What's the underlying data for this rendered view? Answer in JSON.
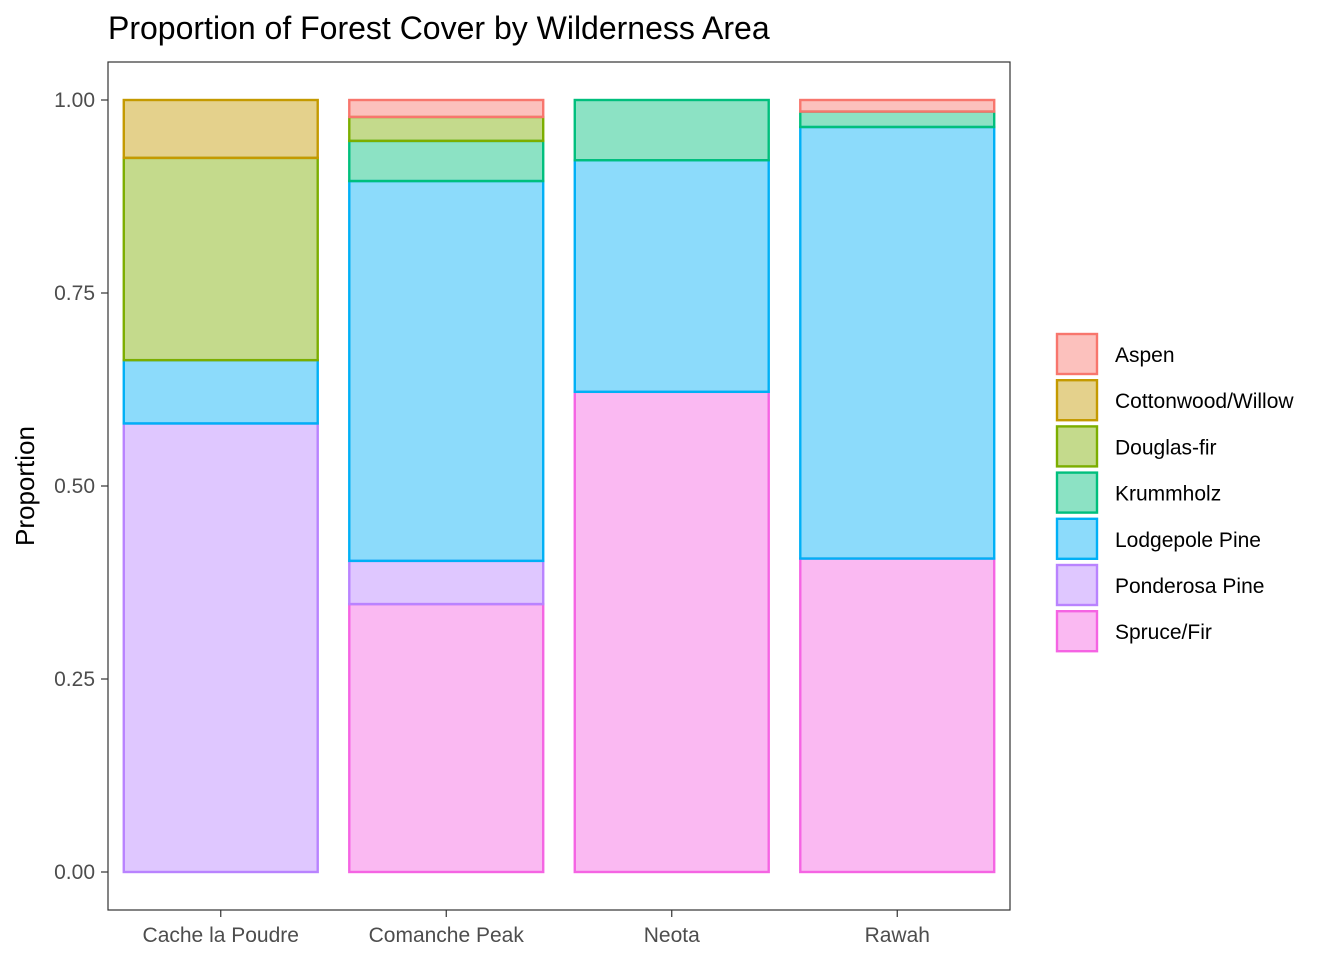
{
  "chart_data": {
    "type": "bar",
    "stacked": true,
    "title": "Proportion of Forest Cover by Wilderness Area",
    "xlabel": "",
    "ylabel": "Proportion",
    "ylim": [
      0,
      1
    ],
    "yticks": [
      "0.00",
      "0.25",
      "0.50",
      "0.75",
      "1.00"
    ],
    "ytick_values": [
      0,
      0.25,
      0.5,
      0.75,
      1
    ],
    "grid": false,
    "legend_position": "right",
    "categories": [
      "Cache la Poudre",
      "Comanche Peak",
      "Neota",
      "Rawah"
    ],
    "series": [
      {
        "name": "Spruce/Fir",
        "color": "#F564E3",
        "values": [
          0,
          0.347,
          0.622,
          0.406
        ]
      },
      {
        "name": "Ponderosa Pine",
        "color": "#B983FF",
        "values": [
          0.581,
          0.056,
          0,
          0
        ]
      },
      {
        "name": "Lodgepole Pine",
        "color": "#00B0F6",
        "values": [
          0.082,
          0.492,
          0.3,
          0.559
        ]
      },
      {
        "name": "Krummholz",
        "color": "#00BF7D",
        "values": [
          0,
          0.052,
          0.078,
          0.02
        ]
      },
      {
        "name": "Douglas-fir",
        "color": "#7CAE00",
        "values": [
          0.262,
          0.031,
          0,
          0
        ]
      },
      {
        "name": "Cottonwood/Willow",
        "color": "#C49A00",
        "values": [
          0.075,
          0,
          0,
          0
        ]
      },
      {
        "name": "Aspen",
        "color": "#F8766D",
        "values": [
          0,
          0.022,
          0,
          0.015
        ]
      }
    ],
    "legend_order": [
      "Aspen",
      "Cottonwood/Willow",
      "Douglas-fir",
      "Krummholz",
      "Lodgepole Pine",
      "Ponderosa Pine",
      "Spruce/Fir"
    ]
  }
}
